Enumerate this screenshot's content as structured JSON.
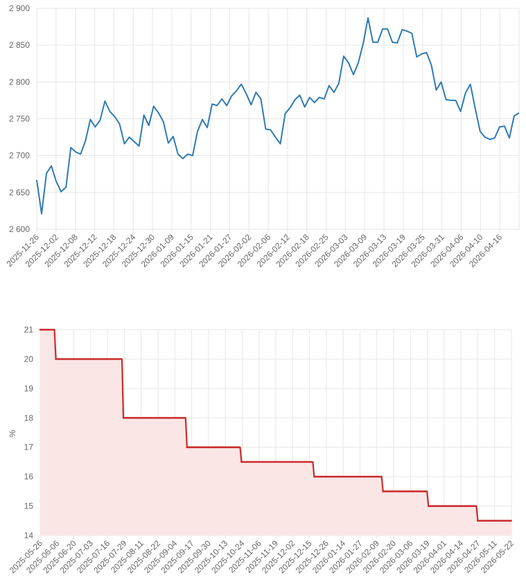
{
  "chart_data": [
    {
      "type": "line",
      "title": "",
      "xlabel": "",
      "ylabel": "",
      "ylim": [
        2600,
        2900
      ],
      "yticks": [
        "2 600",
        "2 650",
        "2 700",
        "2 750",
        "2 800",
        "2 850",
        "2 900"
      ],
      "ytick_values": [
        2600,
        2650,
        2700,
        2750,
        2800,
        2850,
        2900
      ],
      "xticks": [
        "2025-11-26",
        "2025-12-02",
        "2025-12-08",
        "2025-12-12",
        "2025-12-18",
        "2025-12-24",
        "2025-12-30",
        "2026-01-09",
        "2026-01-15",
        "2026-01-21",
        "2026-01-27",
        "2026-02-02",
        "2026-02-06",
        "2026-02-12",
        "2026-02-18",
        "2026-02-25",
        "2026-03-03",
        "2026-03-09",
        "2026-03-13",
        "2026-03-19",
        "2026-03-25",
        "2026-03-31",
        "2026-04-06",
        "2026-04-10",
        "2026-04-16"
      ],
      "grid": true,
      "color": "#2e7ab6",
      "values": [
        2667,
        2621,
        2676,
        2686,
        2665,
        2651,
        2657,
        2711,
        2705,
        2702,
        2720,
        2749,
        2739,
        2748,
        2774,
        2760,
        2753,
        2743,
        2716,
        2725,
        2719,
        2713,
        2755,
        2741,
        2767,
        2758,
        2746,
        2717,
        2726,
        2702,
        2696,
        2702,
        2700,
        2733,
        2749,
        2738,
        2770,
        2768,
        2777,
        2768,
        2781,
        2788,
        2797,
        2784,
        2769,
        2786,
        2777,
        2736,
        2735,
        2725,
        2716,
        2757,
        2765,
        2776,
        2782,
        2766,
        2779,
        2772,
        2779,
        2777,
        2795,
        2786,
        2798,
        2835,
        2826,
        2810,
        2826,
        2852,
        2887,
        2854,
        2854,
        2872,
        2872,
        2854,
        2853,
        2871,
        2869,
        2866,
        2834,
        2838,
        2840,
        2823,
        2789,
        2800,
        2776,
        2775,
        2775,
        2760,
        2785,
        2797,
        2764,
        2733,
        2725,
        2722,
        2724,
        2739,
        2740,
        2724,
        2754,
        2758
      ]
    },
    {
      "type": "area",
      "title": "",
      "xlabel": "",
      "ylabel": "%",
      "ylim": [
        14,
        21
      ],
      "yticks": [
        "14",
        "15",
        "16",
        "17",
        "18",
        "19",
        "20",
        "21"
      ],
      "ytick_values": [
        14,
        15,
        16,
        17,
        18,
        19,
        20,
        21
      ],
      "xticks": [
        "2025-05-26",
        "2025-06-06",
        "2025-06-20",
        "2025-07-03",
        "2025-07-16",
        "2025-07-29",
        "2025-08-11",
        "2025-08-22",
        "2025-09-04",
        "2025-09-17",
        "2025-09-30",
        "2025-10-13",
        "2025-10-24",
        "2025-11-06",
        "2025-11-19",
        "2025-12-02",
        "2025-12-15",
        "2025-12-26",
        "2026-01-14",
        "2026-01-27",
        "2026-02-09",
        "2026-02-20",
        "2026-03-06",
        "2026-03-19",
        "2026-04-01",
        "2026-04-14",
        "2026-04-27",
        "2026-05-11",
        "2026-05-22"
      ],
      "grid": true,
      "color": "#cc2a2a",
      "fill": "#fbe6e6",
      "steps": [
        {
          "from": "2025-05-26",
          "value": 21
        },
        {
          "from": "2025-06-06",
          "value": 20
        },
        {
          "from": "2025-07-28",
          "value": 18
        },
        {
          "from": "2025-09-15",
          "value": 17
        },
        {
          "from": "2025-10-27",
          "value": 16.5
        },
        {
          "from": "2025-12-22",
          "value": 16
        },
        {
          "from": "2026-02-13",
          "value": 15.5
        },
        {
          "from": "2026-03-20",
          "value": 15
        },
        {
          "from": "2026-04-27",
          "value": 14.5
        },
        {
          "until": "2026-05-24"
        }
      ]
    }
  ]
}
